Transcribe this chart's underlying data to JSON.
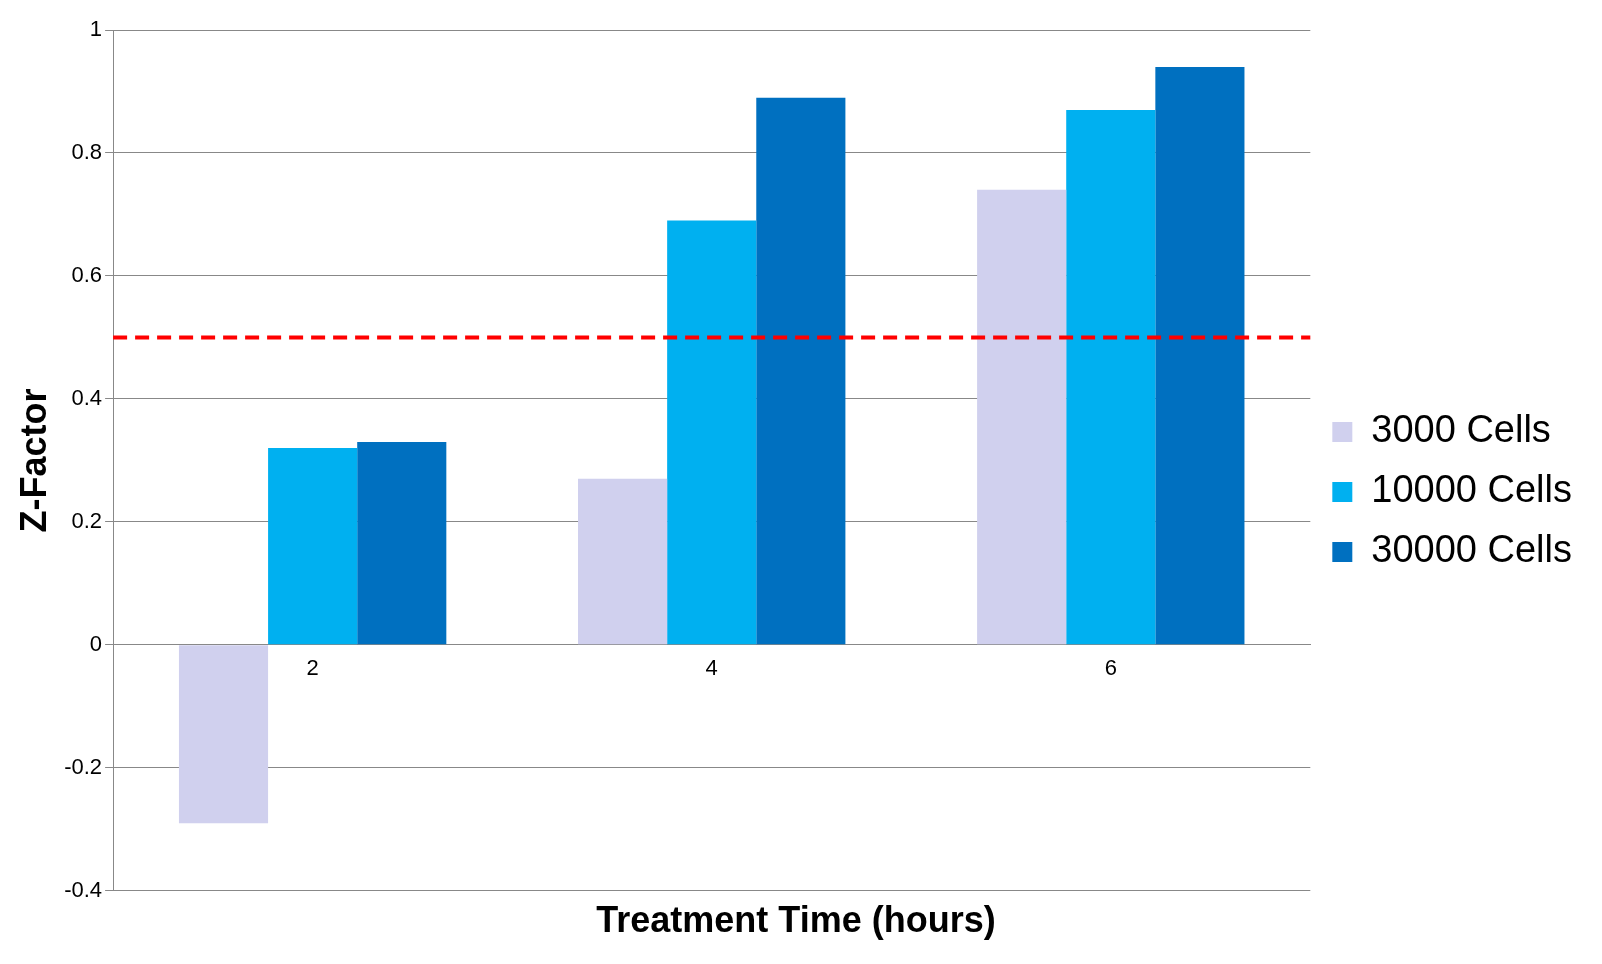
{
  "chart_data": {
    "type": "bar",
    "xlabel": "Treatment Time (hours)",
    "ylabel": "Z-Factor",
    "categories": [
      "2",
      "4",
      "6"
    ],
    "series": [
      {
        "name": "3000 Cells",
        "color": "#d0d0ee",
        "values": [
          -0.29,
          0.27,
          0.74
        ]
      },
      {
        "name": "10000 Cells",
        "color": "#00b0f0",
        "values": [
          0.32,
          0.69,
          0.87
        ]
      },
      {
        "name": "30000 Cells",
        "color": "#0070c0",
        "values": [
          0.33,
          0.89,
          0.94
        ]
      }
    ],
    "ylim": [
      -0.4,
      1
    ],
    "yticks": [
      -0.4,
      -0.2,
      0,
      0.2,
      0.4,
      0.6,
      0.8,
      1
    ],
    "grid": "y",
    "legend": "right",
    "ref_lines": [
      {
        "axis": "y",
        "value": 0.5,
        "color": "#ff0000",
        "line_style": "dashed"
      }
    ]
  }
}
